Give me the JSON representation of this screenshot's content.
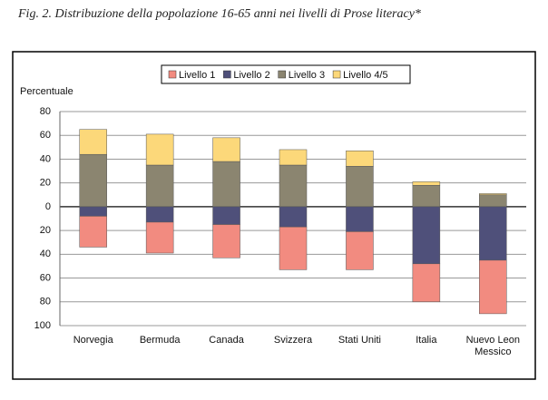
{
  "chart_data": {
    "type": "bar",
    "stacked": true,
    "title": "Fig. 2. Distribuzione della popolazione 16-65 anni nei livelli di Prose literacy*",
    "y_label": "Percentuale",
    "categories": [
      "Norvegia",
      "Bermuda",
      "Canada",
      "Svizzera",
      "Stati Uniti",
      "Italia",
      "Nuevo Leon\nMessico"
    ],
    "series": [
      {
        "name": "Livello 1",
        "color": "#f28b80",
        "values": [
          -26,
          -26,
          -28,
          -36,
          -32,
          -32,
          -45
        ]
      },
      {
        "name": "Livello 2",
        "color": "#4f507a",
        "values": [
          -8,
          -13,
          -15,
          -17,
          -21,
          -48,
          -45
        ]
      },
      {
        "name": "Livello 3",
        "color": "#8b8570",
        "values": [
          44,
          35,
          38,
          35,
          34,
          18,
          10
        ]
      },
      {
        "name": "Livello 4/5",
        "color": "#fcd87a",
        "values": [
          21,
          26,
          20,
          13,
          13,
          3,
          1
        ]
      }
    ],
    "ylim": [
      -100,
      80
    ],
    "yticks": [
      80,
      60,
      40,
      20,
      0,
      {
        "value": -20,
        "label": "20"
      },
      {
        "value": -40,
        "label": "40"
      },
      {
        "value": -60,
        "label": "60"
      },
      {
        "value": -80,
        "label": "80"
      },
      {
        "value": -100,
        "label": "100"
      }
    ],
    "grid": true,
    "legend": "top"
  }
}
